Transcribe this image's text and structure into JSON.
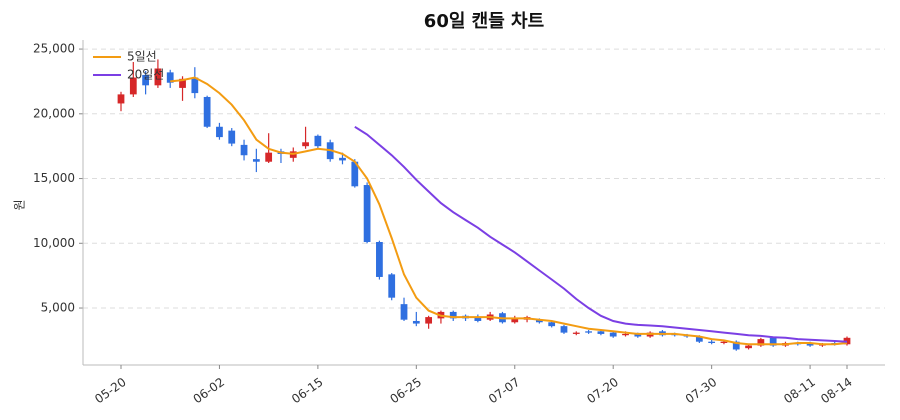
{
  "chart_data": {
    "type": "candlestick",
    "title": "60일 캔들 차트",
    "y_label": "원",
    "categories": [
      "05-20",
      null,
      null,
      null,
      null,
      null,
      null,
      null,
      "06-02",
      null,
      null,
      null,
      null,
      null,
      null,
      null,
      "06-15",
      null,
      null,
      null,
      null,
      null,
      null,
      null,
      "06-25",
      null,
      null,
      null,
      null,
      null,
      null,
      null,
      "07-07",
      null,
      null,
      null,
      null,
      null,
      null,
      null,
      "07-20",
      null,
      null,
      null,
      null,
      null,
      null,
      null,
      "07-30",
      null,
      null,
      null,
      null,
      null,
      null,
      null,
      "08-11",
      null,
      null,
      "08-14"
    ],
    "open": [
      20800,
      21500,
      23000,
      22200,
      23200,
      22000,
      22800,
      21300,
      19000,
      18700,
      17600,
      16500,
      16300,
      17100,
      16600,
      17500,
      18300,
      17800,
      16600,
      16300,
      14500,
      10100,
      7600,
      5300,
      4000,
      3800,
      4200,
      4700,
      4400,
      4300,
      4100,
      4600,
      3900,
      4100,
      4100,
      3900,
      3600,
      3000,
      3200,
      3200,
      3100,
      2900,
      3000,
      2800,
      3200,
      3000,
      2900,
      2800,
      2400,
      2300,
      2400,
      1900,
      2100,
      2700,
      2100,
      2300,
      2300,
      2100,
      2300,
      2200
    ],
    "high": [
      21700,
      24000,
      23300,
      24200,
      23400,
      22900,
      23600,
      21400,
      19300,
      18900,
      18000,
      17300,
      18500,
      17300,
      17400,
      19000,
      18400,
      18000,
      17000,
      16500,
      14700,
      10200,
      7700,
      5800,
      4700,
      4400,
      4800,
      4800,
      4500,
      4500,
      4700,
      4700,
      4400,
      4400,
      4200,
      4000,
      3700,
      3200,
      3300,
      3300,
      3200,
      3200,
      3100,
      3200,
      3300,
      3100,
      3000,
      2900,
      2600,
      2500,
      2500,
      2200,
      2700,
      2800,
      2400,
      2400,
      2400,
      2300,
      2400,
      2800
    ],
    "low": [
      20200,
      21300,
      21500,
      22000,
      22000,
      21000,
      21200,
      18900,
      18000,
      17500,
      16400,
      15500,
      16200,
      16200,
      16300,
      17300,
      17300,
      16300,
      16100,
      14300,
      10000,
      7200,
      5600,
      4000,
      3600,
      3400,
      3800,
      4000,
      4000,
      3900,
      4000,
      3800,
      3800,
      3900,
      3800,
      3500,
      3000,
      2900,
      3000,
      2900,
      2700,
      2800,
      2700,
      2700,
      2800,
      2800,
      2700,
      2300,
      2200,
      2200,
      1700,
      1800,
      2000,
      2000,
      2000,
      2100,
      2000,
      2000,
      2100,
      2100
    ],
    "close": [
      21500,
      22800,
      22200,
      23500,
      22400,
      22700,
      21600,
      19000,
      18200,
      17700,
      16800,
      16300,
      17000,
      16900,
      17100,
      17800,
      17500,
      16500,
      16400,
      14400,
      10100,
      7400,
      5800,
      4100,
      3800,
      4300,
      4700,
      4200,
      4200,
      4000,
      4500,
      3900,
      4200,
      4300,
      3900,
      3600,
      3100,
      3100,
      3100,
      3000,
      2800,
      3000,
      2800,
      3100,
      2900,
      2900,
      2800,
      2400,
      2300,
      2400,
      1800,
      2100,
      2600,
      2100,
      2300,
      2200,
      2100,
      2200,
      2200,
      2700
    ],
    "up_color": "#d62728",
    "down_color": "#2f6fe0",
    "series": [
      {
        "name": "5일선",
        "color": "#f39c12",
        "values": [
          null,
          null,
          null,
          null,
          22500,
          22600,
          22800,
          22300,
          21600,
          20700,
          19500,
          18000,
          17300,
          17000,
          16900,
          17100,
          17300,
          17200,
          16900,
          16300,
          15000,
          13000,
          10400,
          7600,
          5800,
          4800,
          4400,
          4300,
          4300,
          4300,
          4300,
          4200,
          4200,
          4200,
          4100,
          4000,
          3800,
          3600,
          3400,
          3300,
          3200,
          3100,
          3000,
          3000,
          3000,
          3000,
          2900,
          2800,
          2600,
          2500,
          2300,
          2200,
          2200,
          2200,
          2200,
          2300,
          2300,
          2200,
          2200,
          2300
        ]
      },
      {
        "name": "20일선",
        "color": "#7b3fe4",
        "values": [
          null,
          null,
          null,
          null,
          null,
          null,
          null,
          null,
          null,
          null,
          null,
          null,
          null,
          null,
          null,
          null,
          null,
          null,
          null,
          19000,
          18400,
          17600,
          16800,
          15900,
          14900,
          14000,
          13100,
          12400,
          11800,
          11200,
          10500,
          9900,
          9300,
          8600,
          7900,
          7200,
          6500,
          5700,
          5000,
          4400,
          4000,
          3800,
          3700,
          3650,
          3600,
          3500,
          3400,
          3300,
          3200,
          3100,
          3000,
          2900,
          2850,
          2750,
          2700,
          2600,
          2550,
          2500,
          2450,
          2400
        ]
      }
    ],
    "ylim": [
      600,
      25700
    ],
    "yticks": [
      {
        "value": 5000,
        "label": "5,000"
      },
      {
        "value": 10000,
        "label": "10,000"
      },
      {
        "value": 15000,
        "label": "15,000"
      },
      {
        "value": 20000,
        "label": "20,000"
      },
      {
        "value": 25000,
        "label": "25,000"
      }
    ],
    "grid": true,
    "legend": "upper-left"
  }
}
